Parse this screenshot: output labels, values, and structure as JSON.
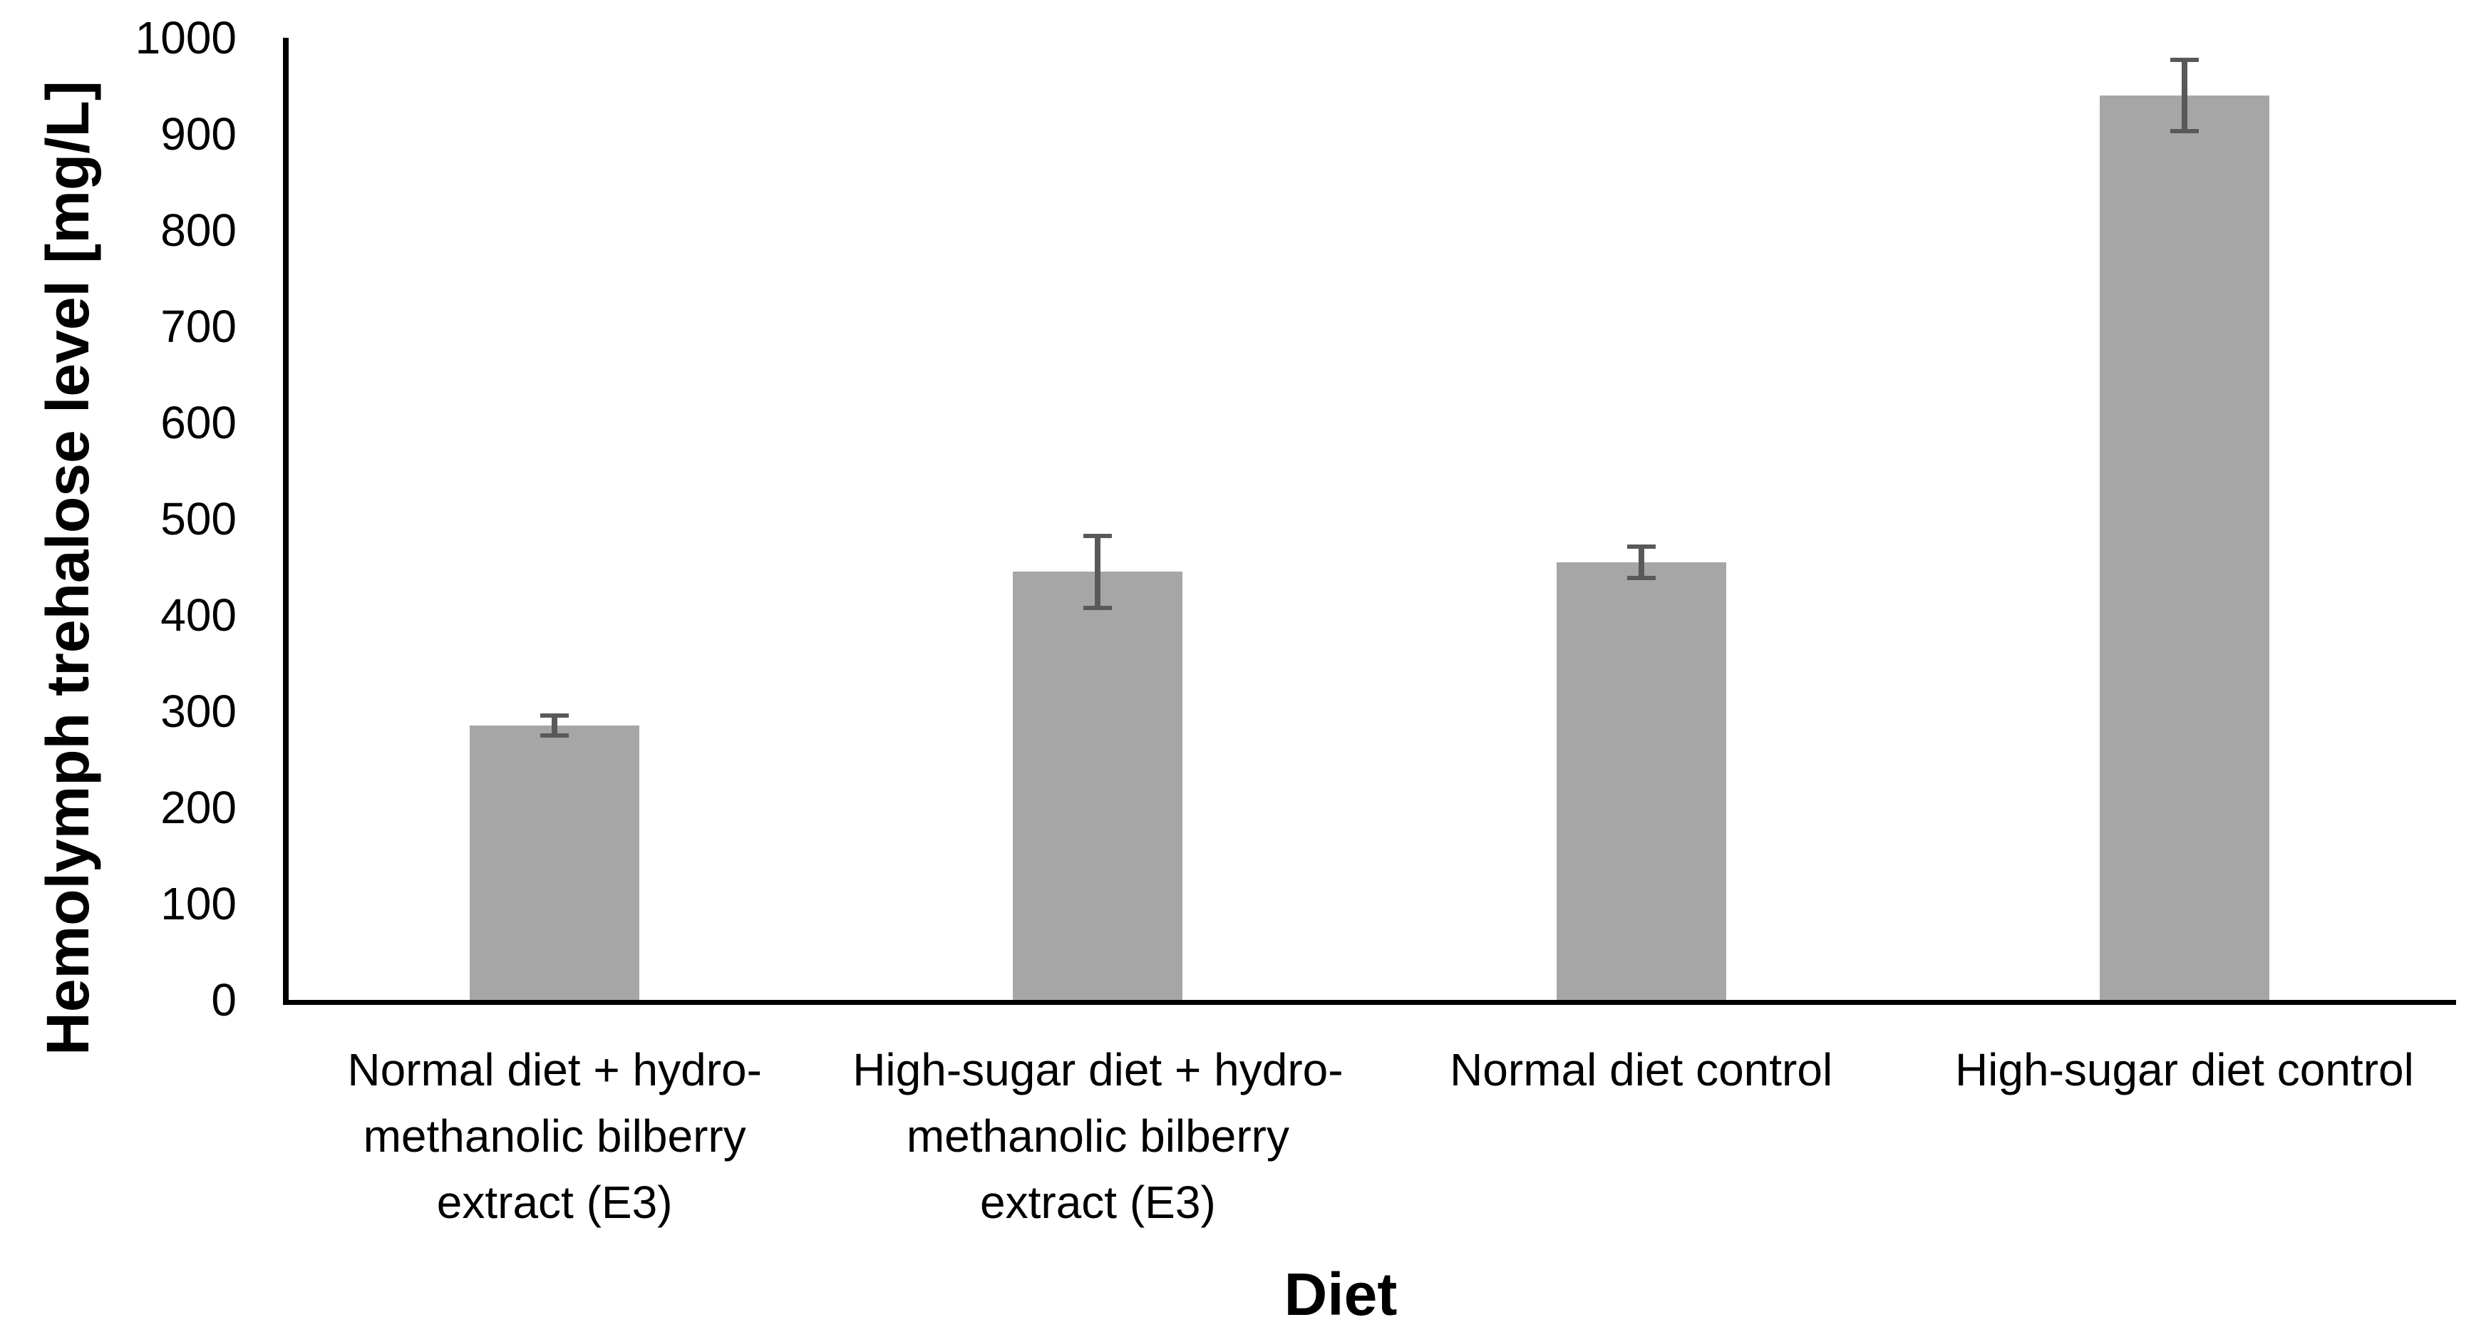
{
  "chart_data": {
    "type": "bar",
    "title": "",
    "xlabel": "Diet",
    "ylabel": "Hemolymph trehalose level [mg/L]",
    "unit": "mg/L",
    "categories": [
      {
        "label": "Normal diet + hydro-methanolic bilberry extract (E3)",
        "lines": [
          "Normal diet + hydro-",
          "methanolic bilberry",
          "extract (E3)"
        ]
      },
      {
        "label": "High-sugar diet + hydro-methanolic bilberry extract (E3)",
        "lines": [
          "High-sugar diet + hydro-",
          "methanolic bilberry",
          "extract (E3)"
        ]
      },
      {
        "label": "Normal diet control",
        "lines": [
          "Normal diet control"
        ]
      },
      {
        "label": "High-sugar diet control",
        "lines": [
          "High-sugar diet control"
        ]
      }
    ],
    "values": [
      285,
      445,
      455,
      940
    ],
    "errors": [
      8,
      35,
      14,
      35
    ],
    "ylim": [
      0,
      1000
    ],
    "ytick_step": 100,
    "yticks": [
      0,
      100,
      200,
      300,
      400,
      500,
      600,
      700,
      800,
      900,
      1000
    ],
    "grid": false,
    "legend": false,
    "error_bars": true,
    "colors": {
      "bar": "#A6A6A6",
      "error": "#595959",
      "axis": "#000000",
      "text": "#000000",
      "background": "#FFFFFF"
    }
  }
}
